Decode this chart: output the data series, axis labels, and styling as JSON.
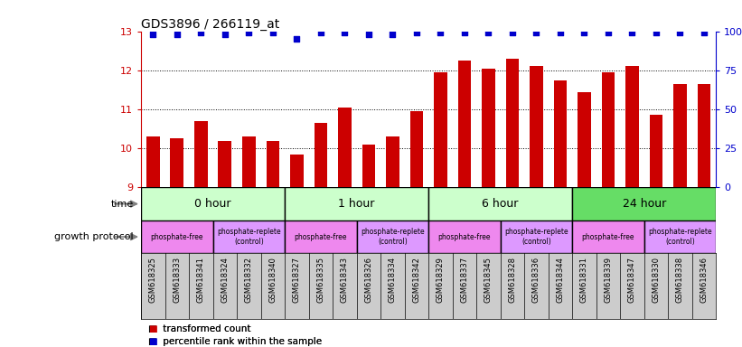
{
  "title": "GDS3896 / 266119_at",
  "samples": [
    "GSM618325",
    "GSM618333",
    "GSM618341",
    "GSM618324",
    "GSM618332",
    "GSM618340",
    "GSM618327",
    "GSM618335",
    "GSM618343",
    "GSM618326",
    "GSM618334",
    "GSM618342",
    "GSM618329",
    "GSM618337",
    "GSM618345",
    "GSM618328",
    "GSM618336",
    "GSM618344",
    "GSM618331",
    "GSM618339",
    "GSM618347",
    "GSM618330",
    "GSM618338",
    "GSM618346"
  ],
  "bar_values": [
    10.3,
    10.25,
    10.7,
    10.2,
    10.3,
    10.2,
    9.85,
    10.65,
    11.05,
    10.1,
    10.3,
    10.95,
    11.95,
    12.25,
    12.05,
    12.3,
    12.1,
    11.75,
    11.45,
    11.95,
    12.1,
    10.85,
    11.65,
    11.65
  ],
  "percentile_values": [
    98,
    98,
    99,
    98,
    99,
    99,
    95,
    99,
    99,
    98,
    98,
    99,
    99,
    99,
    99,
    99,
    99,
    99,
    99,
    99,
    99,
    99,
    99,
    99
  ],
  "bar_color": "#cc0000",
  "percentile_color": "#0000cc",
  "ylim_left": [
    9,
    13
  ],
  "ylim_right": [
    0,
    100
  ],
  "yticks_left": [
    9,
    10,
    11,
    12,
    13
  ],
  "yticks_right": [
    0,
    25,
    50,
    75,
    100
  ],
  "time_groups": [
    {
      "label": "0 hour",
      "start": 0,
      "end": 6,
      "color": "#ccffcc"
    },
    {
      "label": "1 hour",
      "start": 6,
      "end": 12,
      "color": "#ccffcc"
    },
    {
      "label": "6 hour",
      "start": 12,
      "end": 18,
      "color": "#ccffcc"
    },
    {
      "label": "24 hour",
      "start": 18,
      "end": 24,
      "color": "#66dd66"
    }
  ],
  "protocol_groups": [
    {
      "label": "phosphate-free",
      "start": 0,
      "end": 3,
      "color": "#ee88ee"
    },
    {
      "label": "phosphate-replete\n(control)",
      "start": 3,
      "end": 6,
      "color": "#dd99ff"
    },
    {
      "label": "phosphate-free",
      "start": 6,
      "end": 9,
      "color": "#ee88ee"
    },
    {
      "label": "phosphate-replete\n(control)",
      "start": 9,
      "end": 12,
      "color": "#dd99ff"
    },
    {
      "label": "phosphate-free",
      "start": 12,
      "end": 15,
      "color": "#ee88ee"
    },
    {
      "label": "phosphate-replete\n(control)",
      "start": 15,
      "end": 18,
      "color": "#dd99ff"
    },
    {
      "label": "phosphate-free",
      "start": 18,
      "end": 21,
      "color": "#ee88ee"
    },
    {
      "label": "phosphate-replete\n(control)",
      "start": 21,
      "end": 24,
      "color": "#dd99ff"
    }
  ],
  "bg_color": "#ffffff",
  "xticklabel_bg": "#cccccc",
  "left_axis_color": "#cc0000",
  "right_axis_color": "#0000cc",
  "legend_items": [
    {
      "label": "transformed count",
      "color": "#cc0000",
      "marker": "s"
    },
    {
      "label": "percentile rank within the sample",
      "color": "#0000cc",
      "marker": "s"
    }
  ]
}
